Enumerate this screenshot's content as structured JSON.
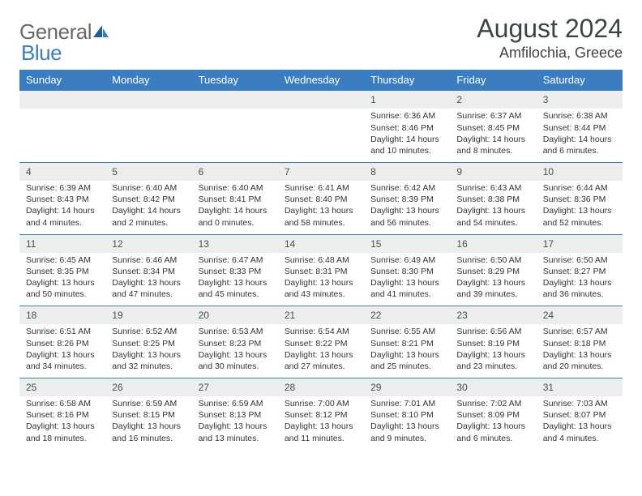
{
  "logo": {
    "part1": "General",
    "part2": "Blue"
  },
  "title": "August 2024",
  "location": "Amfilochia, Greece",
  "weekdays": [
    "Sunday",
    "Monday",
    "Tuesday",
    "Wednesday",
    "Thursday",
    "Friday",
    "Saturday"
  ],
  "colors": {
    "header_bg": "#3a7ec1",
    "header_text": "#ffffff",
    "daynum_bg": "#eceded",
    "border": "#3a7ec1",
    "text": "#333333",
    "logo_gray": "#666a6d",
    "logo_blue": "#3a7ec1"
  },
  "weeks": [
    [
      null,
      null,
      null,
      null,
      {
        "n": "1",
        "sr": "Sunrise: 6:36 AM",
        "ss": "Sunset: 8:46 PM",
        "dl": "Daylight: 14 hours and 10 minutes."
      },
      {
        "n": "2",
        "sr": "Sunrise: 6:37 AM",
        "ss": "Sunset: 8:45 PM",
        "dl": "Daylight: 14 hours and 8 minutes."
      },
      {
        "n": "3",
        "sr": "Sunrise: 6:38 AM",
        "ss": "Sunset: 8:44 PM",
        "dl": "Daylight: 14 hours and 6 minutes."
      }
    ],
    [
      {
        "n": "4",
        "sr": "Sunrise: 6:39 AM",
        "ss": "Sunset: 8:43 PM",
        "dl": "Daylight: 14 hours and 4 minutes."
      },
      {
        "n": "5",
        "sr": "Sunrise: 6:40 AM",
        "ss": "Sunset: 8:42 PM",
        "dl": "Daylight: 14 hours and 2 minutes."
      },
      {
        "n": "6",
        "sr": "Sunrise: 6:40 AM",
        "ss": "Sunset: 8:41 PM",
        "dl": "Daylight: 14 hours and 0 minutes."
      },
      {
        "n": "7",
        "sr": "Sunrise: 6:41 AM",
        "ss": "Sunset: 8:40 PM",
        "dl": "Daylight: 13 hours and 58 minutes."
      },
      {
        "n": "8",
        "sr": "Sunrise: 6:42 AM",
        "ss": "Sunset: 8:39 PM",
        "dl": "Daylight: 13 hours and 56 minutes."
      },
      {
        "n": "9",
        "sr": "Sunrise: 6:43 AM",
        "ss": "Sunset: 8:38 PM",
        "dl": "Daylight: 13 hours and 54 minutes."
      },
      {
        "n": "10",
        "sr": "Sunrise: 6:44 AM",
        "ss": "Sunset: 8:36 PM",
        "dl": "Daylight: 13 hours and 52 minutes."
      }
    ],
    [
      {
        "n": "11",
        "sr": "Sunrise: 6:45 AM",
        "ss": "Sunset: 8:35 PM",
        "dl": "Daylight: 13 hours and 50 minutes."
      },
      {
        "n": "12",
        "sr": "Sunrise: 6:46 AM",
        "ss": "Sunset: 8:34 PM",
        "dl": "Daylight: 13 hours and 47 minutes."
      },
      {
        "n": "13",
        "sr": "Sunrise: 6:47 AM",
        "ss": "Sunset: 8:33 PM",
        "dl": "Daylight: 13 hours and 45 minutes."
      },
      {
        "n": "14",
        "sr": "Sunrise: 6:48 AM",
        "ss": "Sunset: 8:31 PM",
        "dl": "Daylight: 13 hours and 43 minutes."
      },
      {
        "n": "15",
        "sr": "Sunrise: 6:49 AM",
        "ss": "Sunset: 8:30 PM",
        "dl": "Daylight: 13 hours and 41 minutes."
      },
      {
        "n": "16",
        "sr": "Sunrise: 6:50 AM",
        "ss": "Sunset: 8:29 PM",
        "dl": "Daylight: 13 hours and 39 minutes."
      },
      {
        "n": "17",
        "sr": "Sunrise: 6:50 AM",
        "ss": "Sunset: 8:27 PM",
        "dl": "Daylight: 13 hours and 36 minutes."
      }
    ],
    [
      {
        "n": "18",
        "sr": "Sunrise: 6:51 AM",
        "ss": "Sunset: 8:26 PM",
        "dl": "Daylight: 13 hours and 34 minutes."
      },
      {
        "n": "19",
        "sr": "Sunrise: 6:52 AM",
        "ss": "Sunset: 8:25 PM",
        "dl": "Daylight: 13 hours and 32 minutes."
      },
      {
        "n": "20",
        "sr": "Sunrise: 6:53 AM",
        "ss": "Sunset: 8:23 PM",
        "dl": "Daylight: 13 hours and 30 minutes."
      },
      {
        "n": "21",
        "sr": "Sunrise: 6:54 AM",
        "ss": "Sunset: 8:22 PM",
        "dl": "Daylight: 13 hours and 27 minutes."
      },
      {
        "n": "22",
        "sr": "Sunrise: 6:55 AM",
        "ss": "Sunset: 8:21 PM",
        "dl": "Daylight: 13 hours and 25 minutes."
      },
      {
        "n": "23",
        "sr": "Sunrise: 6:56 AM",
        "ss": "Sunset: 8:19 PM",
        "dl": "Daylight: 13 hours and 23 minutes."
      },
      {
        "n": "24",
        "sr": "Sunrise: 6:57 AM",
        "ss": "Sunset: 8:18 PM",
        "dl": "Daylight: 13 hours and 20 minutes."
      }
    ],
    [
      {
        "n": "25",
        "sr": "Sunrise: 6:58 AM",
        "ss": "Sunset: 8:16 PM",
        "dl": "Daylight: 13 hours and 18 minutes."
      },
      {
        "n": "26",
        "sr": "Sunrise: 6:59 AM",
        "ss": "Sunset: 8:15 PM",
        "dl": "Daylight: 13 hours and 16 minutes."
      },
      {
        "n": "27",
        "sr": "Sunrise: 6:59 AM",
        "ss": "Sunset: 8:13 PM",
        "dl": "Daylight: 13 hours and 13 minutes."
      },
      {
        "n": "28",
        "sr": "Sunrise: 7:00 AM",
        "ss": "Sunset: 8:12 PM",
        "dl": "Daylight: 13 hours and 11 minutes."
      },
      {
        "n": "29",
        "sr": "Sunrise: 7:01 AM",
        "ss": "Sunset: 8:10 PM",
        "dl": "Daylight: 13 hours and 9 minutes."
      },
      {
        "n": "30",
        "sr": "Sunrise: 7:02 AM",
        "ss": "Sunset: 8:09 PM",
        "dl": "Daylight: 13 hours and 6 minutes."
      },
      {
        "n": "31",
        "sr": "Sunrise: 7:03 AM",
        "ss": "Sunset: 8:07 PM",
        "dl": "Daylight: 13 hours and 4 minutes."
      }
    ]
  ]
}
